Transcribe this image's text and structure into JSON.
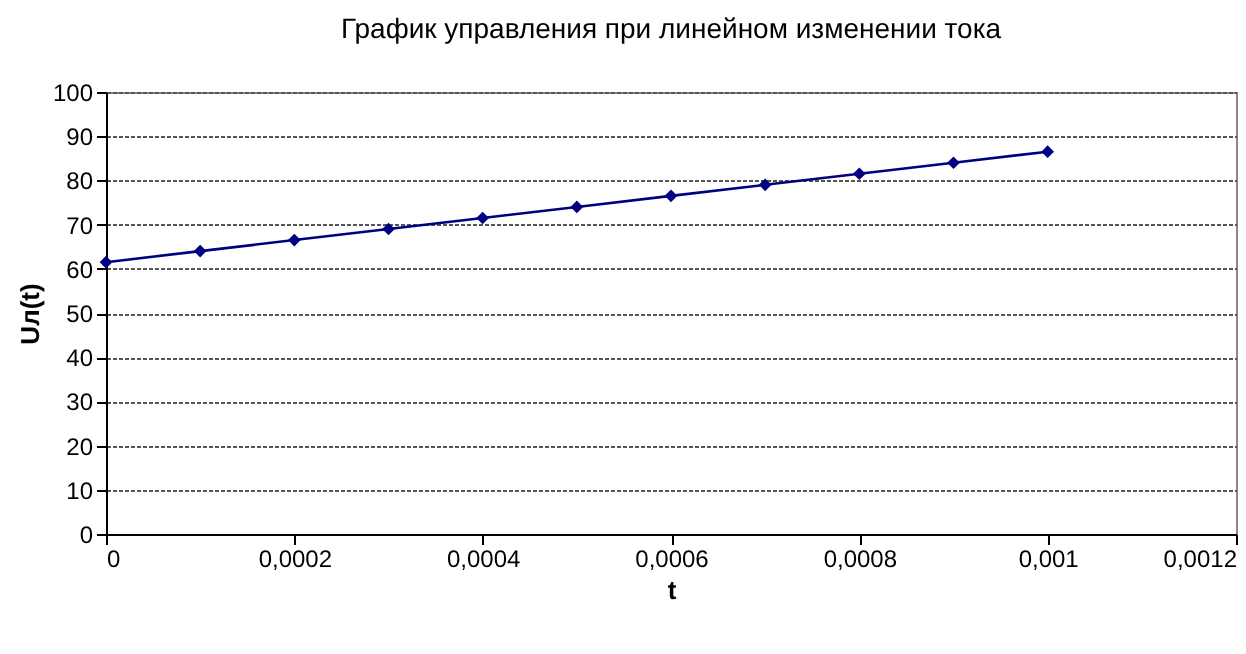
{
  "chart_data": {
    "type": "line",
    "title": "График управления при линейном изменении тока",
    "xlabel": "t",
    "ylabel": "Uл(t)",
    "x": [
      0,
      0.0001,
      0.0002,
      0.0003,
      0.0004,
      0.0005,
      0.0006,
      0.0007,
      0.0008,
      0.0009,
      0.001
    ],
    "series": [
      {
        "color": "#000080",
        "values": [
          61.5,
          64,
          66.5,
          69,
          71.5,
          74,
          76.5,
          79,
          81.5,
          84,
          86.5
        ]
      }
    ],
    "xlim": [
      0,
      0.0012
    ],
    "xticks": [
      0,
      {
        "value": 0.0002,
        "label": "0,0002"
      },
      {
        "value": 0.0004,
        "label": "0,0004"
      },
      {
        "value": 0.0006,
        "label": "0,0006"
      },
      {
        "value": 0.0008,
        "label": "0,0008"
      },
      {
        "value": 0.001,
        "label": "0,001"
      },
      {
        "value": 0.0012,
        "label": "0,0012"
      }
    ],
    "ylim": [
      0,
      100
    ],
    "yticks": [
      0,
      10,
      20,
      30,
      40,
      50,
      60,
      70,
      80,
      90,
      100
    ],
    "grid": "y",
    "marker": "diamond",
    "line_style": "solid"
  }
}
